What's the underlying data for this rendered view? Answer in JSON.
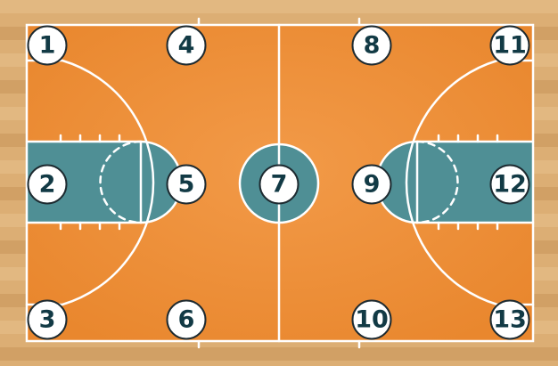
{
  "court": {
    "colors": {
      "wood_base": "#dcae74",
      "wood_stripe_light": "#e8c18d",
      "wood_stripe_dark": "#c9955a",
      "court_floor": "#f0923a",
      "paint": "#4f8f95",
      "line": "#ffffff",
      "marker_fill": "#ffffff",
      "marker_stroke": "#1d2a30",
      "marker_text": "#123a45"
    },
    "zones": [
      {
        "id": 1,
        "label": "1"
      },
      {
        "id": 2,
        "label": "2"
      },
      {
        "id": 3,
        "label": "3"
      },
      {
        "id": 4,
        "label": "4"
      },
      {
        "id": 5,
        "label": "5"
      },
      {
        "id": 6,
        "label": "6"
      },
      {
        "id": 7,
        "label": "7"
      },
      {
        "id": 8,
        "label": "8"
      },
      {
        "id": 9,
        "label": "9"
      },
      {
        "id": 10,
        "label": "10"
      },
      {
        "id": 11,
        "label": "11"
      },
      {
        "id": 12,
        "label": "12"
      },
      {
        "id": 13,
        "label": "13"
      }
    ]
  }
}
